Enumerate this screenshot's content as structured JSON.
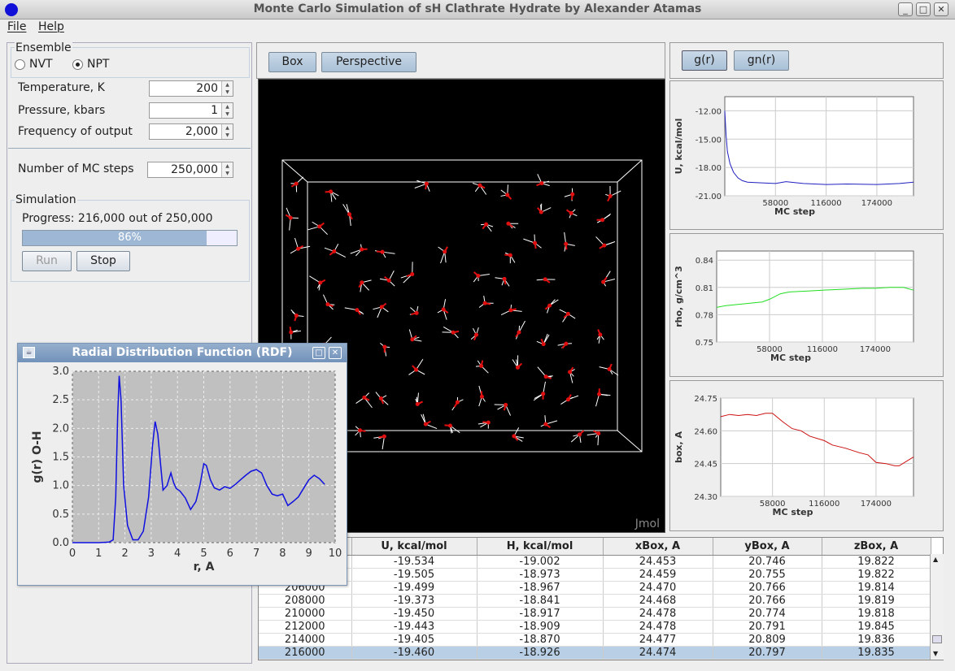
{
  "window": {
    "title": "Monte Carlo Simulation of sH Clathrate Hydrate by Alexander Atamas",
    "btn_minimize": "_",
    "btn_maximize": "□",
    "btn_close": "✕"
  },
  "menu": {
    "file": "File",
    "help": "Help"
  },
  "ensemble": {
    "legend": "Ensemble",
    "nvt": "NVT",
    "npt": "NPT",
    "selected": "NPT"
  },
  "params": {
    "temperature_label": "Temperature, K",
    "temperature_value": "200",
    "pressure_label": "Pressure, kbars",
    "pressure_value": "1",
    "frequency_label": "Frequency of output",
    "frequency_value": "2,000",
    "steps_label": "Number of MC steps",
    "steps_value": "250,000"
  },
  "simulation": {
    "legend": "Simulation",
    "progress_text": "Progress: 216,000 out of 250,000",
    "progress_percent": "86%",
    "progress_fraction": 0.86,
    "run_label": "Run",
    "stop_label": "Stop"
  },
  "viewer": {
    "box_label": "Box",
    "perspective_label": "Perspective",
    "watermark": "Jmol"
  },
  "right_tabs": {
    "gr": "g(r)",
    "gnr": "gn(r)"
  },
  "rdf_window": {
    "title": "Radial Distribution Function (RDF)"
  },
  "chart_data": [
    {
      "type": "line",
      "ylabel": "g(r) O-H",
      "xlabel": "r, A",
      "xlim": [
        0,
        10
      ],
      "ylim": [
        0,
        3
      ],
      "xticks": [
        "0",
        "1",
        "2",
        "3",
        "4",
        "5",
        "6",
        "7",
        "8",
        "9",
        "10"
      ],
      "yticks": [
        "0.0",
        "0.5",
        "1.0",
        "1.5",
        "2.0",
        "2.5",
        "3.0"
      ],
      "color": "#1010e0",
      "grid": true,
      "x": [
        0,
        1.0,
        1.4,
        1.55,
        1.65,
        1.72,
        1.78,
        1.85,
        1.95,
        2.1,
        2.3,
        2.5,
        2.7,
        2.9,
        3.05,
        3.15,
        3.25,
        3.35,
        3.45,
        3.6,
        3.75,
        3.85,
        3.95,
        4.1,
        4.3,
        4.5,
        4.7,
        4.85,
        5.0,
        5.1,
        5.25,
        5.4,
        5.6,
        5.8,
        6.0,
        6.2,
        6.4,
        6.6,
        6.8,
        7.0,
        7.2,
        7.4,
        7.6,
        7.8,
        8.0,
        8.2,
        8.4,
        8.6,
        8.8,
        9.0,
        9.2,
        9.4,
        9.6
      ],
      "y": [
        0,
        0,
        0.01,
        0.05,
        0.8,
        2.2,
        2.92,
        2.5,
        1.0,
        0.3,
        0.05,
        0.05,
        0.2,
        0.8,
        1.7,
        2.12,
        1.9,
        1.4,
        0.92,
        1.0,
        1.22,
        1.05,
        0.95,
        0.9,
        0.78,
        0.58,
        0.72,
        1.0,
        1.38,
        1.35,
        1.1,
        0.96,
        0.92,
        0.98,
        0.95,
        1.02,
        1.1,
        1.18,
        1.25,
        1.28,
        1.22,
        1.0,
        0.85,
        0.82,
        0.85,
        0.65,
        0.72,
        0.8,
        0.95,
        1.1,
        1.18,
        1.12,
        1.02
      ]
    },
    {
      "type": "line",
      "ylabel": "U, kcal/mol",
      "xlabel": "MC step",
      "xlim": [
        0,
        216000
      ],
      "ylim": [
        -21.0,
        -10.5
      ],
      "xticks": [
        "58000",
        "116000",
        "174000"
      ],
      "yticks": [
        "-12.00",
        "-15.00",
        "-18.00",
        "-21.00"
      ],
      "color": "#2020c0",
      "grid": true,
      "x": [
        0,
        1500,
        3000,
        6000,
        10000,
        15000,
        20000,
        26000,
        35000,
        45000,
        58000,
        70000,
        90000,
        116000,
        140000,
        174000,
        200000,
        216000
      ],
      "y": [
        -12.0,
        -14.6,
        -16.3,
        -17.6,
        -18.5,
        -19.1,
        -19.4,
        -19.55,
        -19.6,
        -19.65,
        -19.7,
        -19.5,
        -19.7,
        -19.8,
        -19.75,
        -19.8,
        -19.7,
        -19.55
      ]
    },
    {
      "type": "line",
      "ylabel": "rho, g/cm^3",
      "xlabel": "MC step",
      "xlim": [
        0,
        216000
      ],
      "ylim": [
        0.75,
        0.85
      ],
      "xticks": [
        "58000",
        "116000",
        "174000"
      ],
      "yticks": [
        "0.84",
        "0.81",
        "0.78",
        "0.75"
      ],
      "color": "#22dd22",
      "grid": true,
      "x": [
        0,
        10000,
        30000,
        50000,
        58000,
        70000,
        80000,
        100000,
        116000,
        140000,
        160000,
        174000,
        190000,
        205000,
        216000
      ],
      "y": [
        0.788,
        0.79,
        0.792,
        0.794,
        0.797,
        0.803,
        0.805,
        0.806,
        0.807,
        0.808,
        0.809,
        0.809,
        0.81,
        0.81,
        0.807
      ]
    },
    {
      "type": "line",
      "ylabel": "box, A",
      "xlabel": "MC step",
      "xlim": [
        0,
        216000
      ],
      "ylim": [
        24.3,
        24.75
      ],
      "xticks": [
        "58000",
        "116000",
        "174000"
      ],
      "yticks": [
        "24.75",
        "24.60",
        "24.45",
        "24.30"
      ],
      "color": "#cc1010",
      "grid": true,
      "x": [
        0,
        10000,
        20000,
        30000,
        40000,
        50000,
        58000,
        70000,
        80000,
        90000,
        100000,
        116000,
        125000,
        140000,
        155000,
        165000,
        174000,
        185000,
        195000,
        200000,
        210000,
        216000
      ],
      "y": [
        24.665,
        24.675,
        24.67,
        24.675,
        24.67,
        24.68,
        24.68,
        24.64,
        24.61,
        24.6,
        24.575,
        24.555,
        24.535,
        24.52,
        24.5,
        24.49,
        24.455,
        24.45,
        24.44,
        24.44,
        24.465,
        24.48
      ]
    }
  ],
  "table": {
    "headers": [
      "",
      "U, kcal/mol",
      "H, kcal/mol",
      "xBox, A",
      "yBox, A",
      "zBox, A"
    ],
    "rows": [
      [
        "",
        "-19.534",
        "-19.002",
        "24.453",
        "20.746",
        "19.822"
      ],
      [
        "",
        "-19.505",
        "-18.973",
        "24.459",
        "20.755",
        "19.822"
      ],
      [
        "206000",
        "-19.499",
        "-18.967",
        "24.470",
        "20.766",
        "19.814"
      ],
      [
        "208000",
        "-19.373",
        "-18.841",
        "24.468",
        "20.766",
        "19.819"
      ],
      [
        "210000",
        "-19.450",
        "-18.917",
        "24.478",
        "20.774",
        "19.818"
      ],
      [
        "212000",
        "-19.443",
        "-18.909",
        "24.478",
        "20.791",
        "19.845"
      ],
      [
        "214000",
        "-19.405",
        "-18.870",
        "24.477",
        "20.809",
        "19.836"
      ],
      [
        "216000",
        "-19.460",
        "-18.926",
        "24.474",
        "20.797",
        "19.835"
      ]
    ]
  }
}
